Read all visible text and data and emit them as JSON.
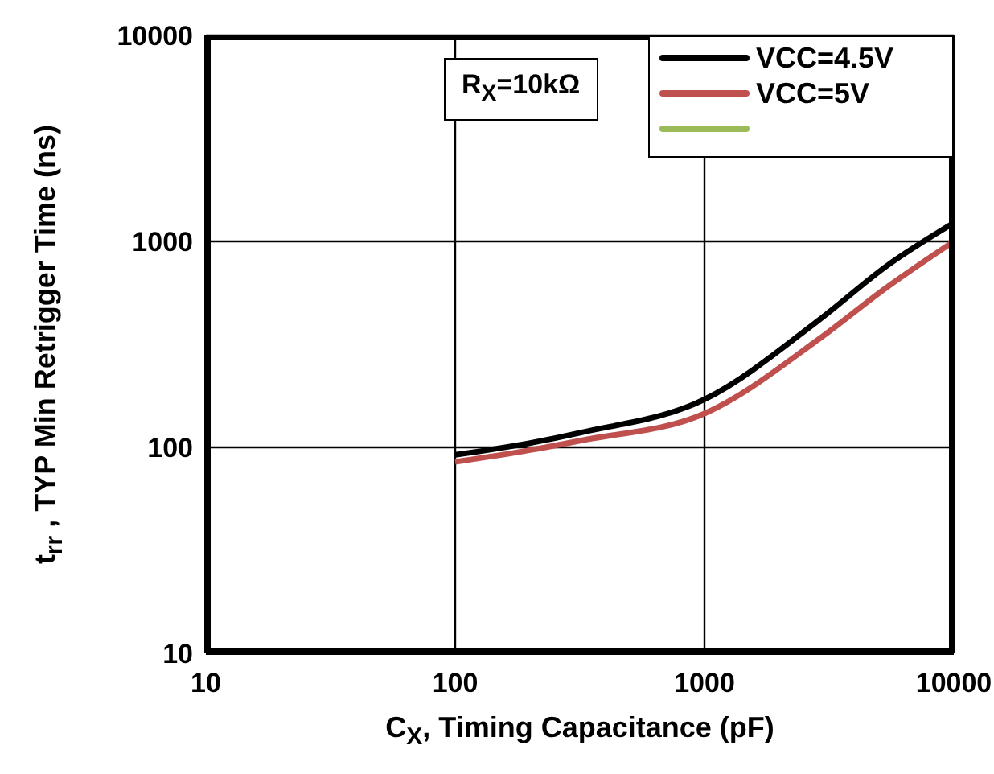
{
  "chart_data": {
    "type": "line",
    "xlabel": "C$_{X}$, Timing Capacitance  (pF)",
    "ylabel": "t$_{rr}$ , TYP Min Retrigger Time (ns)",
    "annotations": [
      "R$_{X}$=10kΩ"
    ],
    "log": "xy",
    "xlim": [
      10,
      10000
    ],
    "xticks": [
      10,
      100,
      1000,
      10000
    ],
    "ylim": [
      10,
      10000
    ],
    "yticks": [
      10,
      100,
      1000,
      10000
    ],
    "grid": true,
    "legend": "top right",
    "line_style": "solid",
    "marker": "none",
    "series": [
      {
        "name": "VCC=4.5V",
        "color": "#000000",
        "x": [
          100,
          200,
          320,
          1000,
          2900,
          5400,
          10000
        ],
        "values": [
          92,
          105,
          118,
          171,
          418,
          762,
          1230
        ]
      },
      {
        "name": "VCC=5V",
        "color": "#c0504d",
        "x": [
          100,
          200,
          320,
          1000,
          2900,
          5400,
          10000
        ],
        "values": [
          85,
          97,
          108,
          146,
          338,
          600,
          1000
        ]
      },
      {
        "color": "#9bbb59"
      }
    ]
  }
}
